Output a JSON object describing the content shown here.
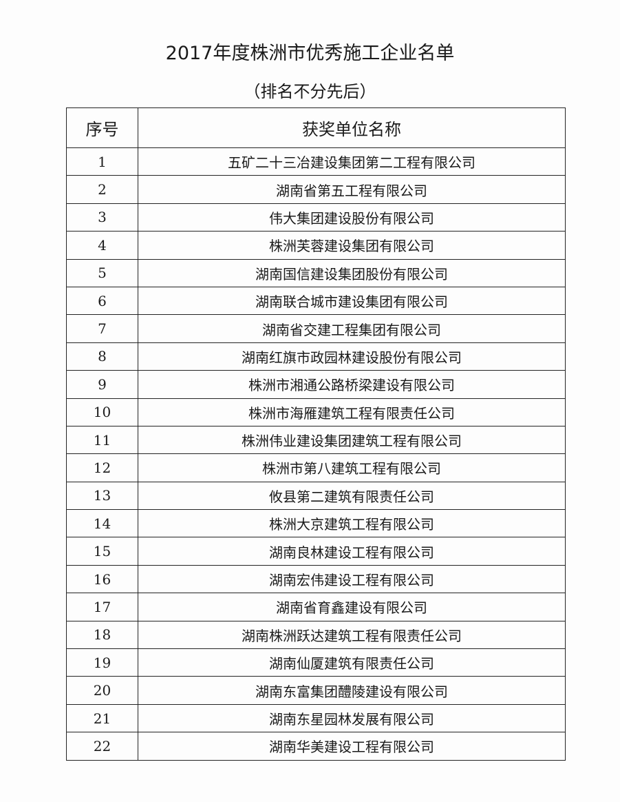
{
  "title": "2017年度株洲市优秀施工企业名单",
  "subtitle": "（排名不分先后）",
  "table": {
    "headers": [
      "序号",
      "获奖单位名称"
    ],
    "rows": [
      [
        "1",
        "五矿二十三冶建设集团第二工程有限公司"
      ],
      [
        "2",
        "湖南省第五工程有限公司"
      ],
      [
        "3",
        "伟大集团建设股份有限公司"
      ],
      [
        "4",
        "株洲芙蓉建设集团有限公司"
      ],
      [
        "5",
        "湖南国信建设集团股份有限公司"
      ],
      [
        "6",
        "湖南联合城市建设集团有限公司"
      ],
      [
        "7",
        "湖南省交建工程集团有限公司"
      ],
      [
        "8",
        "湖南红旗市政园林建设股份有限公司"
      ],
      [
        "9",
        "株洲市湘通公路桥梁建设有限公司"
      ],
      [
        "10",
        "株洲市海雁建筑工程有限责任公司"
      ],
      [
        "11",
        "株洲伟业建设集团建筑工程有限公司"
      ],
      [
        "12",
        "株洲市第八建筑工程有限公司"
      ],
      [
        "13",
        "攸县第二建筑有限责任公司"
      ],
      [
        "14",
        "株洲大京建筑工程有限公司"
      ],
      [
        "15",
        "湖南良林建设工程有限公司"
      ],
      [
        "16",
        "湖南宏伟建设工程有限公司"
      ],
      [
        "17",
        "湖南省育鑫建设有限公司"
      ],
      [
        "18",
        "湖南株洲跃达建筑工程有限责任公司"
      ],
      [
        "19",
        "湖南仙厦建筑有限责任公司"
      ],
      [
        "20",
        "湖南东富集团醴陵建设有限公司"
      ],
      [
        "21",
        "湖南东星园林发展有限公司"
      ],
      [
        "22",
        "湖南华美建设工程有限公司"
      ]
    ]
  }
}
